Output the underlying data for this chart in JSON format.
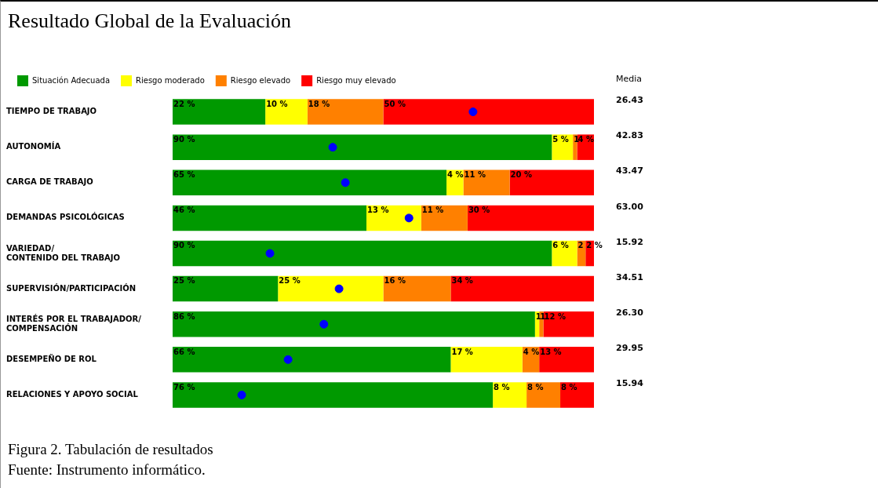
{
  "chart_data": {
    "type": "bar",
    "title": "Resultado Global de la Evaluación",
    "orientation": "horizontal",
    "stacked": true,
    "grid": false,
    "legend": "top",
    "marker": "circle",
    "tick_labels": "y",
    "categories": [
      "TIEMPO DE TRABAJO",
      "AUTONOMÍA",
      "CARGA DE TRABAJO",
      "DEMANDAS PSICOLÓGICAS",
      "VARIEDAD/ CONTENIDO DEL TRABAJO",
      "SUPERVISIÓN/PARTICIPACIÓN",
      "INTERÉS POR EL TRABAJADOR/ COMPENSACIÓN",
      "DESEMPEÑO DE ROL",
      "RELACIONES Y APOYO SOCIAL"
    ],
    "series": [
      {
        "name": "Situación Adecuada",
        "color": "#009900",
        "values": [
          22,
          90,
          65,
          46,
          90,
          25,
          86,
          66,
          76
        ],
        "value_labels": [
          "22 %",
          "90 %",
          "65 %",
          "46 %",
          "90 %",
          "25 %",
          "86 %",
          "66 %",
          "76 %"
        ]
      },
      {
        "name": "Riesgo moderado",
        "color": "#ffff00",
        "values": [
          10,
          5,
          4,
          13,
          6,
          25,
          1,
          17,
          8
        ],
        "value_labels": [
          "10 %",
          "5 %",
          "4 %",
          "13 %",
          "6 %",
          "25 %",
          "1",
          "17 %",
          "8 %"
        ]
      },
      {
        "name": "Riesgo elevado",
        "color": "#ff8000",
        "values": [
          18,
          1,
          11,
          11,
          2,
          16,
          1,
          4,
          8
        ],
        "value_labels": [
          "18 %",
          "1",
          "11 %",
          "11 %",
          "2",
          "16 %",
          "1",
          "4 %",
          "8 %"
        ]
      },
      {
        "name": "Riesgo muy elevado",
        "color": "#ff0000",
        "values": [
          50,
          4,
          20,
          30,
          2,
          34,
          12,
          13,
          8
        ],
        "value_labels": [
          "50 %",
          "4 %",
          "20 %",
          "30 %",
          "2 %",
          "34 %",
          "12 %",
          "13 %",
          "8 %"
        ]
      },
      {
        "type": "scatter",
        "color": "#0000ff",
        "values": [
          71.3,
          38,
          41,
          56.1,
          23.1,
          39.5,
          35.9,
          27.4,
          16.4
        ]
      }
    ],
    "annotations": [
      "Media",
      "26.43",
      "42.83",
      "43.47",
      "63.00",
      "15.92",
      "34.51",
      "26.30",
      "29.95",
      "15.94",
      "Figura 2. Tabulación de resultados",
      "Fuente: Instrumento informático."
    ]
  }
}
